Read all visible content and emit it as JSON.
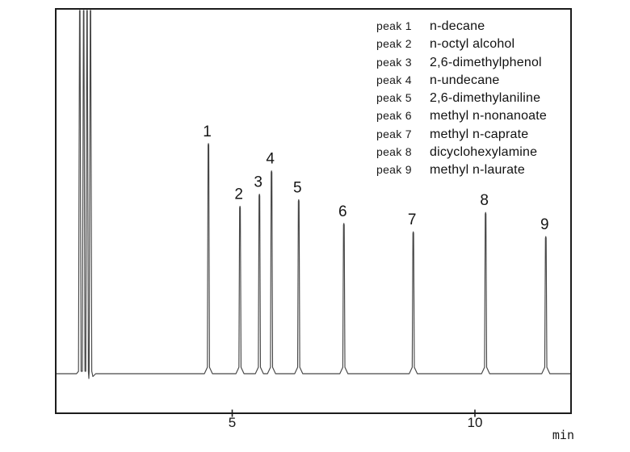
{
  "chart_data": {
    "type": "line",
    "subtype": "chromatogram",
    "title": "",
    "x_axis": {
      "unit": "min",
      "ticks": [
        {
          "t": 5,
          "label": "5"
        },
        {
          "t": 10,
          "label": "10"
        }
      ],
      "visible_range_min": [
        1.3,
        12.0
      ]
    },
    "y_axis": {
      "visible": false
    },
    "solvent_front_rts_min": [
      1.86,
      1.94,
      2.01,
      2.08
    ],
    "peaks": [
      {
        "id": 1,
        "label": "peak 1",
        "name": "n-decane",
        "rt_min": 4.51,
        "height_frac": 0.631
      },
      {
        "id": 2,
        "label": "peak 2",
        "name": "n-octyl alcohol",
        "rt_min": 5.16,
        "height_frac": 0.459
      },
      {
        "id": 3,
        "label": "peak 3",
        "name": "2,6-dimethylphenol",
        "rt_min": 5.56,
        "height_frac": 0.492
      },
      {
        "id": 4,
        "label": "peak 4",
        "name": "n-undecane",
        "rt_min": 5.81,
        "height_frac": 0.556
      },
      {
        "id": 5,
        "label": "peak 5",
        "name": "2,6-dimethylaniline",
        "rt_min": 6.37,
        "height_frac": 0.477
      },
      {
        "id": 6,
        "label": "peak 6",
        "name": "methyl n-nonanoate",
        "rt_min": 7.3,
        "height_frac": 0.412
      },
      {
        "id": 7,
        "label": "peak 7",
        "name": "methyl n-caprate",
        "rt_min": 8.73,
        "height_frac": 0.389
      },
      {
        "id": 8,
        "label": "peak 8",
        "name": "dicyclohexylamine",
        "rt_min": 10.22,
        "height_frac": 0.442
      },
      {
        "id": 9,
        "label": "peak 9",
        "name": "methyl n-laurate",
        "rt_min": 11.46,
        "height_frac": 0.376
      }
    ],
    "colors": {
      "trace": "#474747",
      "box_border": "#1c1c1c",
      "text": "#161616",
      "background": "#ffffff"
    }
  }
}
